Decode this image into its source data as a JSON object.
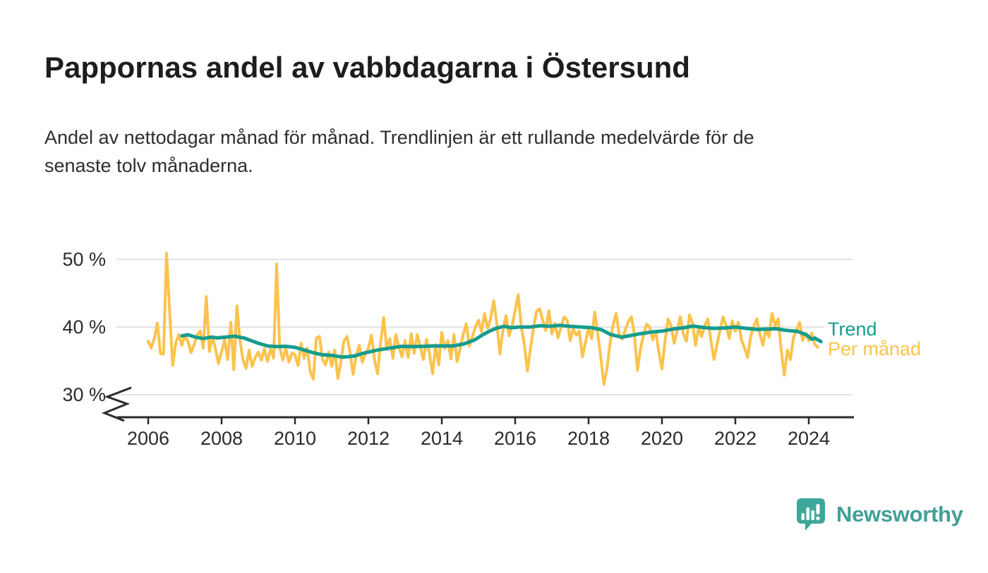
{
  "chart_data": {
    "type": "line",
    "title": "Pappornas andel av vabbdagarna i Östersund",
    "subtitle": "Andel av nettodagar månad för månad. Trendlinjen är ett rullande medelvärde för de\nsenaste tolv månaderna.",
    "unit": "%",
    "grid": "horizontal",
    "axis_break": true,
    "y_axis": {
      "ticks": [
        50,
        40,
        30
      ],
      "tick_labels": [
        "50 %",
        "40 %",
        "30 %"
      ],
      "visible_range": [
        29.5,
        52.5
      ]
    },
    "x_axis": {
      "ticks": [
        2006,
        2008,
        2010,
        2012,
        2014,
        2016,
        2018,
        2020,
        2022,
        2024
      ],
      "range": [
        2005.15,
        2025.2
      ]
    },
    "legend": {
      "position": "right-inline",
      "entries": [
        "Trend",
        "Per månad"
      ]
    },
    "series": [
      {
        "name": "Per månad",
        "color": "#FBC34D",
        "kind": "monthly",
        "start": "2006-01",
        "values": [
          37.9,
          36.9,
          38.3,
          40.6,
          36.1,
          36.0,
          50.9,
          42.5,
          34.3,
          37.6,
          38.9,
          37.3,
          38.8,
          37.9,
          36.2,
          37.4,
          38.8,
          39.4,
          36.9,
          44.5,
          36.4,
          38.6,
          36.8,
          34.6,
          36.4,
          38.1,
          35.2,
          40.7,
          33.7,
          43.1,
          38.0,
          35.2,
          33.9,
          36.6,
          34.2,
          35.5,
          36.3,
          35.1,
          36.8,
          34.9,
          36.7,
          35.4,
          49.3,
          37.0,
          35.1,
          36.9,
          34.8,
          36.2,
          35.9,
          34.3,
          37.6,
          35.4,
          36.9,
          33.4,
          32.3,
          38.4,
          38.6,
          35.2,
          34.4,
          36.3,
          34.2,
          36.6,
          32.4,
          34.8,
          37.9,
          38.6,
          36.3,
          33.0,
          35.8,
          37.3,
          34.8,
          36.0,
          36.9,
          38.8,
          35.1,
          33.1,
          37.7,
          41.4,
          36.7,
          38.3,
          35.4,
          38.9,
          37.0,
          35.6,
          38.0,
          35.5,
          39.0,
          36.1,
          38.9,
          37.0,
          35.2,
          38.2,
          36.0,
          33.1,
          37.4,
          34.4,
          39.2,
          36.8,
          38.0,
          35.3,
          38.9,
          34.9,
          36.8,
          38.9,
          40.5,
          37.2,
          38.5,
          40.0,
          41.0,
          39.3,
          42.0,
          39.8,
          41.3,
          43.9,
          40.5,
          36.0,
          39.5,
          41.7,
          38.7,
          40.2,
          42.5,
          44.8,
          40.0,
          37.5,
          33.5,
          36.8,
          39.9,
          42.3,
          42.7,
          41.0,
          39.5,
          42.4,
          39.0,
          40.5,
          38.4,
          40.0,
          41.5,
          41.0,
          38.0,
          39.7,
          38.8,
          39.4,
          35.6,
          37.8,
          39.8,
          38.3,
          42.2,
          39.0,
          35.5,
          31.5,
          33.8,
          37.5,
          40.3,
          42.0,
          39.0,
          38.2,
          39.6,
          40.8,
          41.5,
          38.9,
          33.6,
          36.8,
          38.9,
          40.4,
          40.0,
          38.1,
          39.4,
          36.2,
          33.8,
          37.9,
          41.2,
          40.2,
          37.6,
          39.5,
          41.5,
          39.0,
          37.9,
          41.8,
          40.6,
          37.3,
          39.9,
          38.6,
          40.3,
          41.2,
          38.0,
          35.2,
          37.4,
          39.6,
          41.5,
          40.2,
          38.3,
          40.9,
          39.4,
          40.7,
          38.1,
          36.9,
          35.5,
          38.6,
          40.1,
          41.2,
          39.0,
          37.3,
          39.8,
          38.5,
          42.0,
          40.2,
          41.2,
          36.5,
          32.9,
          36.6,
          35.2,
          38.4,
          39.6,
          40.7,
          38.0,
          39.1,
          38.0,
          39.1,
          37.4,
          37.0
        ]
      },
      {
        "name": "Trend",
        "color": "#169C8D",
        "kind": "rolling-12m-mean",
        "points": [
          [
            2006.92,
            38.7
          ],
          [
            2007.08,
            38.85
          ],
          [
            2007.3,
            38.5
          ],
          [
            2007.5,
            38.3
          ],
          [
            2007.7,
            38.5
          ],
          [
            2007.9,
            38.4
          ],
          [
            2008.1,
            38.5
          ],
          [
            2008.35,
            38.65
          ],
          [
            2008.6,
            38.4
          ],
          [
            2008.8,
            38.0
          ],
          [
            2009.0,
            37.6
          ],
          [
            2009.25,
            37.2
          ],
          [
            2009.5,
            37.1
          ],
          [
            2009.75,
            37.15
          ],
          [
            2010.0,
            37.0
          ],
          [
            2010.25,
            36.6
          ],
          [
            2010.5,
            36.2
          ],
          [
            2010.75,
            35.9
          ],
          [
            2011.0,
            35.8
          ],
          [
            2011.3,
            35.55
          ],
          [
            2011.6,
            35.7
          ],
          [
            2011.85,
            36.1
          ],
          [
            2012.0,
            36.3
          ],
          [
            2012.3,
            36.65
          ],
          [
            2012.6,
            36.9
          ],
          [
            2012.9,
            37.15
          ],
          [
            2013.2,
            37.1
          ],
          [
            2013.5,
            37.15
          ],
          [
            2013.8,
            37.2
          ],
          [
            2014.0,
            37.2
          ],
          [
            2014.3,
            37.2
          ],
          [
            2014.6,
            37.5
          ],
          [
            2014.9,
            38.1
          ],
          [
            2015.1,
            38.8
          ],
          [
            2015.3,
            39.4
          ],
          [
            2015.5,
            39.85
          ],
          [
            2015.7,
            40.1
          ],
          [
            2015.9,
            39.9
          ],
          [
            2016.1,
            40.0
          ],
          [
            2016.4,
            40.0
          ],
          [
            2016.7,
            40.2
          ],
          [
            2016.95,
            40.1
          ],
          [
            2017.2,
            40.25
          ],
          [
            2017.5,
            40.1
          ],
          [
            2017.8,
            40.0
          ],
          [
            2018.1,
            39.9
          ],
          [
            2018.35,
            39.6
          ],
          [
            2018.6,
            38.9
          ],
          [
            2018.9,
            38.5
          ],
          [
            2019.1,
            38.7
          ],
          [
            2019.4,
            39.0
          ],
          [
            2019.7,
            39.25
          ],
          [
            2020.0,
            39.4
          ],
          [
            2020.3,
            39.7
          ],
          [
            2020.6,
            39.9
          ],
          [
            2020.85,
            40.15
          ],
          [
            2021.1,
            39.95
          ],
          [
            2021.4,
            39.8
          ],
          [
            2021.7,
            39.85
          ],
          [
            2022.0,
            40.0
          ],
          [
            2022.3,
            39.8
          ],
          [
            2022.6,
            39.65
          ],
          [
            2022.9,
            39.7
          ],
          [
            2023.1,
            39.75
          ],
          [
            2023.4,
            39.5
          ],
          [
            2023.7,
            39.35
          ],
          [
            2023.95,
            38.8
          ],
          [
            2024.08,
            38.2
          ],
          [
            2024.17,
            38.35
          ],
          [
            2024.33,
            37.85
          ]
        ]
      }
    ]
  },
  "branding": {
    "logo_text": "Newsworthy",
    "logo_color": "#41A096"
  }
}
